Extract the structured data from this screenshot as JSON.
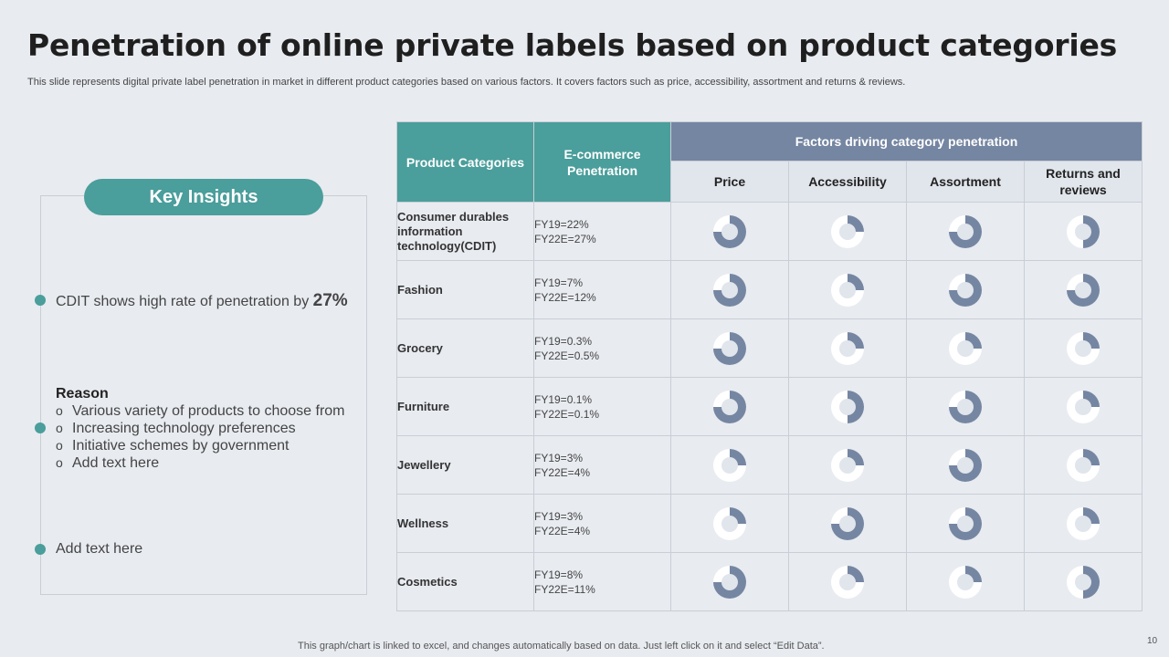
{
  "title": "Penetration of online private labels based on product categories",
  "subtitle": "This slide represents digital private label penetration in market in different product categories based on various factors. It covers factors such as price, accessibility, assortment and returns & reviews.",
  "insights": {
    "heading": "Key Insights",
    "point1_text": "CDIT shows high rate of penetration by ",
    "point1_value": "27%",
    "reason_title": "Reason",
    "reasons": [
      "Various variety of products to choose from",
      "Increasing technology preferences",
      "Initiative schemes by government",
      "Add text here"
    ],
    "reason_bullet": "o",
    "point3_text": "Add text here"
  },
  "table": {
    "col_category": "Product Categories",
    "col_penetration": "E-commerce Penetration",
    "factors_header": "Factors driving category penetration",
    "factors": [
      "Price",
      "Accessibility",
      "Assortment",
      "Returns and reviews"
    ],
    "rows": [
      {
        "category": "Consumer durables information technology(CDIT)",
        "fy19": "FY19=22%",
        "fy22": "FY22E=27%",
        "levels": [
          0.75,
          0.25,
          0.75,
          0.5
        ]
      },
      {
        "category": "Fashion",
        "fy19": "FY19=7%",
        "fy22": "FY22E=12%",
        "levels": [
          0.75,
          0.25,
          0.75,
          0.75
        ]
      },
      {
        "category": "Grocery",
        "fy19": "FY19=0.3%",
        "fy22": "FY22E=0.5%",
        "levels": [
          0.75,
          0.25,
          0.25,
          0.25
        ]
      },
      {
        "category": "Furniture",
        "fy19": "FY19=0.1%",
        "fy22": "FY22E=0.1%",
        "levels": [
          0.75,
          0.5,
          0.75,
          0.25
        ]
      },
      {
        "category": "Jewellery",
        "fy19": "FY19=3%",
        "fy22": "FY22E=4%",
        "levels": [
          0.25,
          0.25,
          0.75,
          0.25
        ]
      },
      {
        "category": "Wellness",
        "fy19": "FY19=3%",
        "fy22": "FY22E=4%",
        "levels": [
          0.25,
          0.75,
          0.75,
          0.25
        ]
      },
      {
        "category": "Cosmetics",
        "fy19": "FY19=8%",
        "fy22": "FY22E=11%",
        "levels": [
          0.75,
          0.25,
          0.25,
          0.5
        ]
      }
    ]
  },
  "footer": "This graph/chart is linked to excel, and changes automatically based on data. Just left click on it and select “Edit Data”.",
  "page_number": "10",
  "colors": {
    "teal": "#4a9e9b",
    "slate": "#7586a2",
    "donut_track": "#ffffff",
    "donut_center": "#e1e5ec"
  }
}
